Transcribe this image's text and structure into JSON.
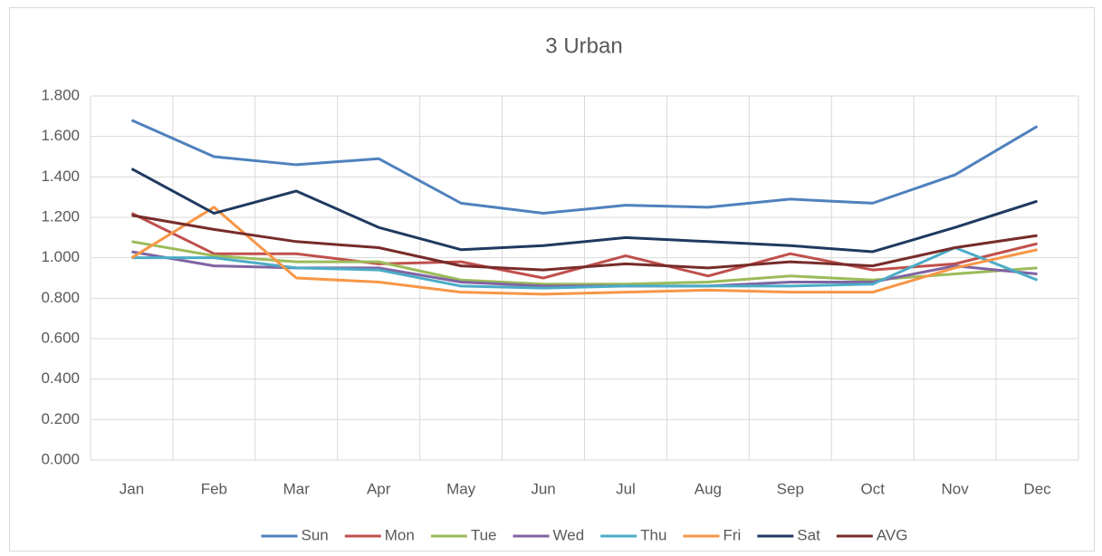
{
  "chart_data": {
    "type": "line",
    "title": "3 Urban",
    "categories": [
      "Jan",
      "Feb",
      "Mar",
      "Apr",
      "May",
      "Jun",
      "Jul",
      "Aug",
      "Sep",
      "Oct",
      "Nov",
      "Dec"
    ],
    "ylim": [
      0,
      1.8
    ],
    "yticks": [
      {
        "value": 0,
        "label": "0.000"
      },
      {
        "value": 0.2,
        "label": "0.200"
      },
      {
        "value": 0.4,
        "label": "0.400"
      },
      {
        "value": 0.6,
        "label": "0.600"
      },
      {
        "value": 0.8,
        "label": "0.800"
      },
      {
        "value": 1.0,
        "label": "1.000"
      },
      {
        "value": 1.2,
        "label": "1.200"
      },
      {
        "value": 1.4,
        "label": "1.400"
      },
      {
        "value": 1.6,
        "label": "1.600"
      },
      {
        "value": 1.8,
        "label": "1.800"
      }
    ],
    "grid": true,
    "legend": "bottom",
    "series": [
      {
        "name": "Sun",
        "color": "#4f81bd",
        "values": [
          1.68,
          1.5,
          1.46,
          1.49,
          1.27,
          1.22,
          1.26,
          1.25,
          1.29,
          1.27,
          1.41,
          1.65
        ]
      },
      {
        "name": "Mon",
        "color": "#c0504d",
        "values": [
          1.22,
          1.02,
          1.02,
          0.97,
          0.98,
          0.9,
          1.01,
          0.91,
          1.02,
          0.94,
          0.97,
          1.07
        ]
      },
      {
        "name": "Tue",
        "color": "#9bbb59",
        "values": [
          1.08,
          1.01,
          0.98,
          0.98,
          0.89,
          0.87,
          0.87,
          0.88,
          0.91,
          0.89,
          0.92,
          0.95
        ]
      },
      {
        "name": "Wed",
        "color": "#8064a2",
        "values": [
          1.03,
          0.96,
          0.95,
          0.95,
          0.88,
          0.86,
          0.86,
          0.86,
          0.88,
          0.88,
          0.96,
          0.92
        ]
      },
      {
        "name": "Thu",
        "color": "#4bacc6",
        "values": [
          1.0,
          1.0,
          0.95,
          0.94,
          0.86,
          0.85,
          0.86,
          0.86,
          0.86,
          0.87,
          1.05,
          0.89
        ]
      },
      {
        "name": "Fri",
        "color": "#f79646",
        "values": [
          1.0,
          1.25,
          0.9,
          0.88,
          0.83,
          0.82,
          0.83,
          0.84,
          0.83,
          0.83,
          0.95,
          1.04
        ]
      },
      {
        "name": "Sat",
        "color": "#1f3a60",
        "values": [
          1.44,
          1.22,
          1.33,
          1.15,
          1.04,
          1.06,
          1.1,
          1.08,
          1.06,
          1.03,
          1.15,
          1.28
        ]
      },
      {
        "name": "AVG",
        "color": "#772c2a",
        "values": [
          1.21,
          1.14,
          1.08,
          1.05,
          0.96,
          0.94,
          0.97,
          0.95,
          0.98,
          0.96,
          1.05,
          1.11
        ]
      }
    ]
  }
}
